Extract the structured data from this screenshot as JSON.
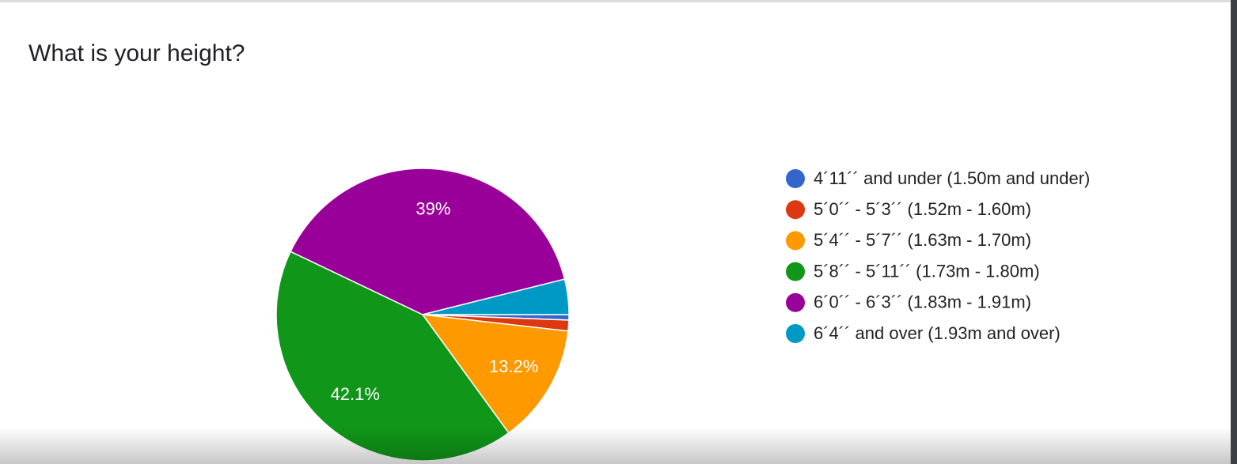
{
  "chart_data": {
    "type": "pie",
    "title": "What is your height?",
    "categories": [
      "4´11´´ and under (1.50m and under)",
      "5´0´´ - 5´3´´ (1.52m - 1.60m)",
      "5´4´´ - 5´7´´ (1.63m - 1.70m)",
      "5´8´´ - 5´11´´ (1.73m - 1.80m)",
      "6´0´´ - 6´3´´ (1.83m - 1.91m)",
      "6´4´´ and over (1.93m and over)"
    ],
    "values": [
      0.6,
      1.2,
      13.2,
      42.1,
      39,
      3.9
    ],
    "value_labels": [
      null,
      null,
      "13.2%",
      "42.1%",
      "39%",
      null
    ],
    "colors": [
      "#3366cc",
      "#dc3912",
      "#ff9900",
      "#109618",
      "#990099",
      "#0099c6"
    ],
    "legend": "right"
  }
}
